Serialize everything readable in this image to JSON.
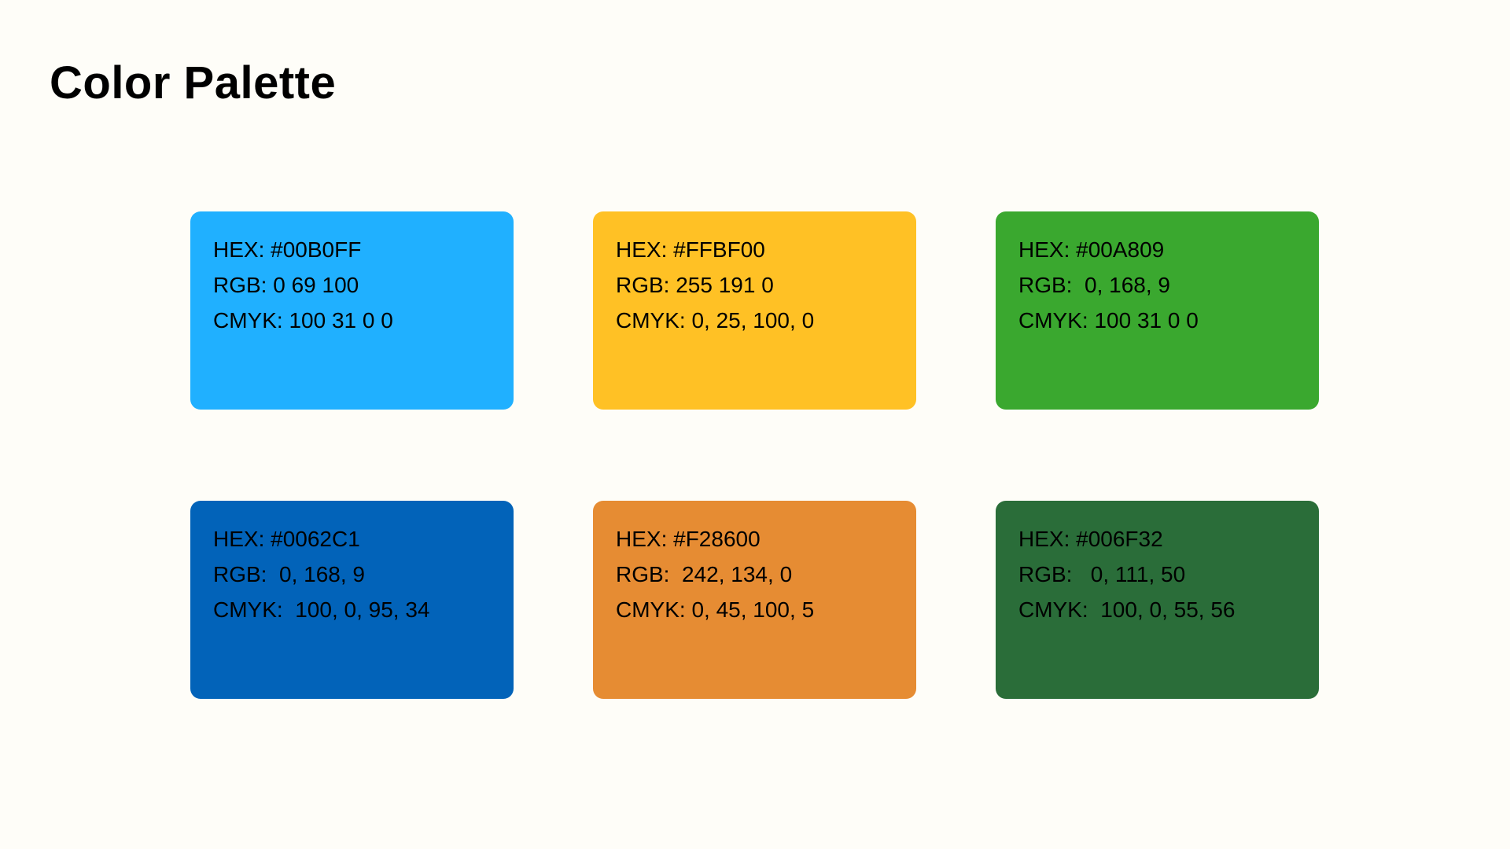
{
  "title": "Color Palette",
  "swatches": [
    {
      "color": "#20B0FF",
      "hex": "HEX: #00B0FF",
      "rgb": "RGB: 0 69 100",
      "cmyk": "CMYK: 100 31 0 0"
    },
    {
      "color": "#FFC125",
      "hex": "HEX: #FFBF00",
      "rgb": "RGB: 255 191 0",
      "cmyk": "CMYK: 0, 25, 100, 0"
    },
    {
      "color": "#3AA82F",
      "hex": "HEX: #00A809",
      "rgb": "RGB:  0, 168, 9",
      "cmyk": "CMYK: 100 31 0 0"
    },
    {
      "color": "#0263B9",
      "hex": "HEX: #0062C1",
      "rgb": "RGB:  0, 168, 9",
      "cmyk": "CMYK:  100, 0, 95, 34"
    },
    {
      "color": "#E68C33",
      "hex": "HEX: #F28600",
      "rgb": "RGB:  242, 134, 0",
      "cmyk": "CMYK: 0, 45, 100, 5"
    },
    {
      "color": "#2A6D39",
      "hex": "HEX: #006F32",
      "rgb": "RGB:   0, 111, 50",
      "cmyk": "CMYK:  100, 0, 55, 56"
    }
  ]
}
